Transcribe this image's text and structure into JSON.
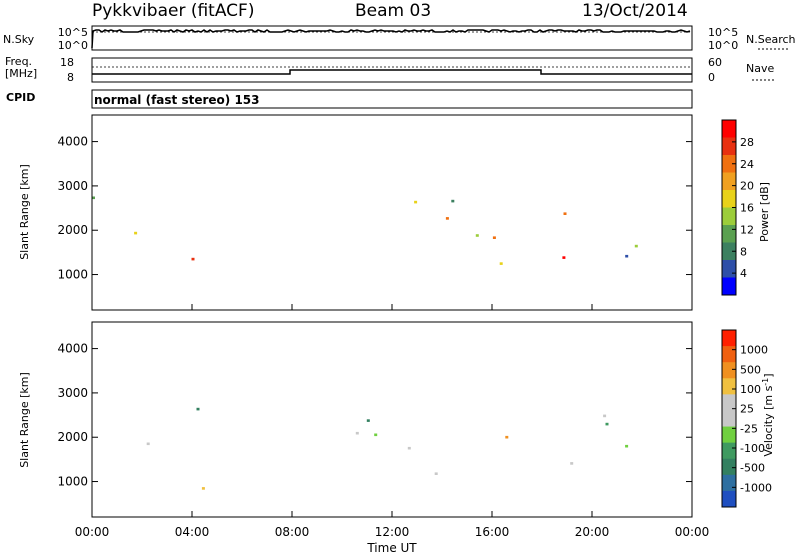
{
  "header": {
    "station": "Pykkvibaer (fitACF)",
    "beam": "Beam 03",
    "date": "13/Oct/2014"
  },
  "nsky_panel": {
    "left_label": "N.Sky",
    "left_ticks": [
      "10^5",
      "10^0"
    ],
    "right_ticks": [
      "10^5",
      "10^0"
    ],
    "right_label": "N.Search"
  },
  "freq_panel": {
    "left_label_line1": "Freq.",
    "left_label_line2": "[MHz]",
    "left_ticks": [
      "18",
      "8"
    ],
    "right_ticks": [
      "60",
      "0"
    ],
    "right_label": "Nave"
  },
  "cpid": {
    "label": "CPID",
    "text": "normal (fast stereo) 153"
  },
  "chart_data": [
    {
      "type": "heatmap",
      "name": "power",
      "ylabel": "Slant Range [km]",
      "yticks": [
        "4000",
        "3000",
        "2000",
        "1000"
      ],
      "ylim": [
        200,
        4600
      ],
      "colorbar_label": "Power [dB]",
      "colorbar_ticks": [
        "28",
        "24",
        "20",
        "16",
        "12",
        "8",
        "4"
      ],
      "colors": [
        "#0000ff",
        "#2e4fa8",
        "#3c8060",
        "#5aa050",
        "#9ccd3a",
        "#e8d21a",
        "#f0a020",
        "#f07010",
        "#e83010",
        "#ff0000"
      ]
    },
    {
      "type": "heatmap",
      "name": "velocity",
      "ylabel": "Slant Range [km]",
      "yticks": [
        "4000",
        "3000",
        "2000",
        "1000"
      ],
      "ylim": [
        200,
        4600
      ],
      "colorbar_label": "Velocity [m s",
      "colorbar_label_sup": "-1",
      "colorbar_label_end": "]",
      "colorbar_ticks": [
        "1000",
        "500",
        "100",
        "25",
        "-25",
        "-100",
        "-500",
        "-1000"
      ],
      "colors": [
        "#1f4fc0",
        "#2e6fa0",
        "#338060",
        "#3f9a60",
        "#70d040",
        "#c8c8c8",
        "#c8c8c8",
        "#f0c040",
        "#f09020",
        "#f06010",
        "#ff2000"
      ]
    }
  ],
  "time_axis": {
    "label": "Time UT",
    "ticks": [
      "00:00",
      "04:00",
      "08:00",
      "12:00",
      "16:00",
      "20:00",
      "00:00"
    ]
  }
}
